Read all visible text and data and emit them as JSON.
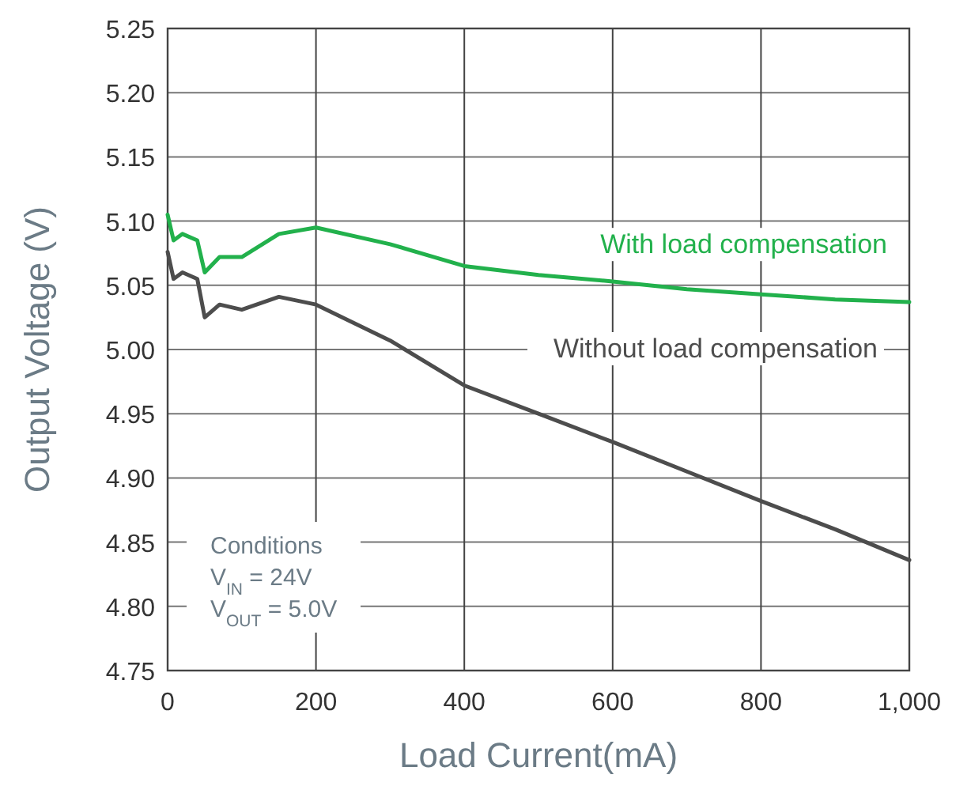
{
  "chart_data": {
    "type": "line",
    "xlabel": "Load Current(mA)",
    "ylabel": "Output Voltage (V)",
    "xlim": [
      0,
      1000
    ],
    "ylim": [
      4.75,
      5.25
    ],
    "xticks": [
      0,
      200,
      400,
      600,
      800,
      {
        "value": 1000,
        "label": "1,000"
      }
    ],
    "yticks": [
      {
        "value": 4.75,
        "label": "4.75"
      },
      {
        "value": 4.8,
        "label": "4.80"
      },
      {
        "value": 4.85,
        "label": "4.85"
      },
      {
        "value": 4.9,
        "label": "4.90"
      },
      {
        "value": 4.95,
        "label": "4.95"
      },
      {
        "value": 5.0,
        "label": "5.00"
      },
      {
        "value": 5.05,
        "label": "5.05"
      },
      {
        "value": 5.1,
        "label": "5.10"
      },
      {
        "value": 5.15,
        "label": "5.15"
      },
      {
        "value": 5.2,
        "label": "5.20"
      },
      {
        "value": 5.25,
        "label": "5.25"
      }
    ],
    "grid": true,
    "line_style": "solid",
    "marker": "none",
    "x": [
      0,
      8,
      20,
      40,
      50,
      70,
      100,
      150,
      200,
      300,
      400,
      500,
      600,
      700,
      800,
      900,
      1000
    ],
    "series": [
      {
        "name": "With load compensation",
        "color": "#22b14c",
        "values": [
          5.105,
          5.085,
          5.09,
          5.085,
          5.06,
          5.072,
          5.072,
          5.09,
          5.095,
          5.082,
          5.065,
          5.058,
          5.053,
          5.047,
          5.043,
          5.039,
          5.037
        ]
      },
      {
        "name": "Without load compensation",
        "color": "#4d4d4d",
        "values": [
          5.076,
          5.055,
          5.06,
          5.055,
          5.025,
          5.035,
          5.031,
          5.041,
          5.035,
          5.007,
          4.972,
          4.95,
          4.928,
          4.905,
          4.882,
          4.86,
          4.836
        ]
      }
    ],
    "annotations": [
      "Conditions",
      "V$_{IN}$ = 24V",
      "V$_{OUT}$ = 5.0V"
    ]
  }
}
